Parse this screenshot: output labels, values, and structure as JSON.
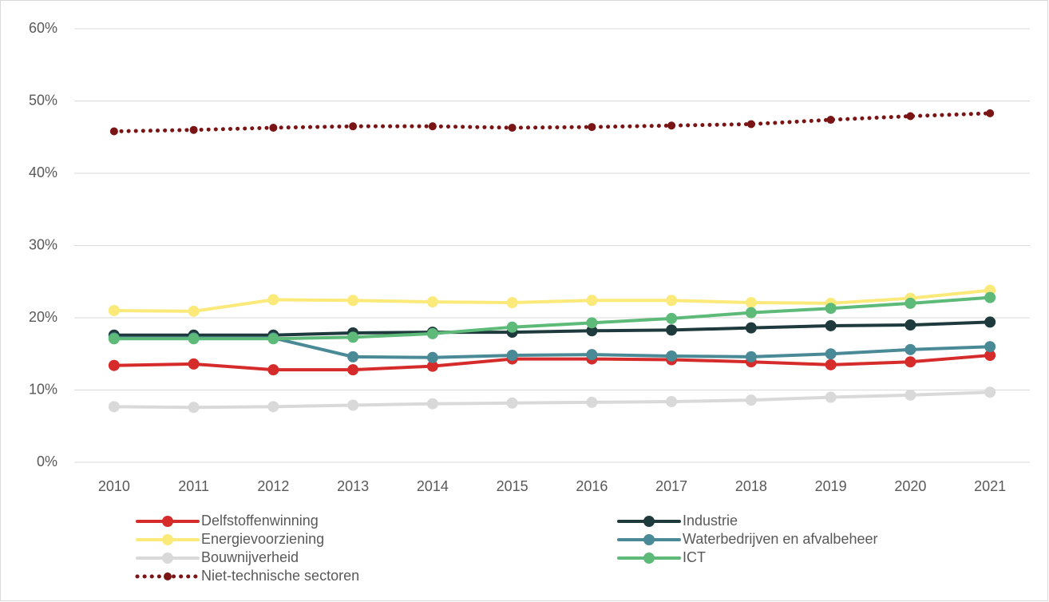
{
  "chart_data": {
    "type": "line",
    "categories": [
      "2010",
      "2011",
      "2012",
      "2013",
      "2014",
      "2015",
      "2016",
      "2017",
      "2018",
      "2019",
      "2020",
      "2021"
    ],
    "ylim": [
      0,
      60
    ],
    "yticks": [
      {
        "value": 0,
        "label": "0%"
      },
      {
        "value": 10,
        "label": "10%"
      },
      {
        "value": 20,
        "label": "20%"
      },
      {
        "value": 30,
        "label": "30%"
      },
      {
        "value": 40,
        "label": "40%"
      },
      {
        "value": 50,
        "label": "50%"
      },
      {
        "value": 60,
        "label": "60%"
      }
    ],
    "grid": true,
    "legend": "bottom",
    "series": [
      {
        "name": "Delfstoffenwinning",
        "color": "#d62b2b",
        "values": [
          13.4,
          13.6,
          12.8,
          12.8,
          13.3,
          14.3,
          14.3,
          14.2,
          13.9,
          13.5,
          13.9,
          14.8
        ]
      },
      {
        "name": "Industrie",
        "color": "#1f3a3d",
        "values": [
          17.6,
          17.6,
          17.6,
          17.9,
          18.0,
          18.0,
          18.2,
          18.3,
          18.6,
          18.9,
          19.0,
          19.4
        ]
      },
      {
        "name": "Energievoorziening",
        "color": "#fbe97a",
        "values": [
          21.0,
          20.9,
          22.5,
          22.4,
          22.2,
          22.1,
          22.4,
          22.4,
          22.1,
          22.0,
          22.7,
          23.8
        ]
      },
      {
        "name": "Waterbedrijven en afvalbeheer",
        "color": "#4a8a96",
        "values": [
          17.2,
          17.2,
          17.2,
          14.6,
          14.5,
          14.8,
          14.9,
          14.7,
          14.6,
          15.0,
          15.6,
          16.0
        ]
      },
      {
        "name": "Bouwnijverheid",
        "color": "#d9d9d9",
        "values": [
          7.7,
          7.6,
          7.7,
          7.9,
          8.1,
          8.2,
          8.3,
          8.4,
          8.6,
          9.0,
          9.3,
          9.7
        ]
      },
      {
        "name": "ICT",
        "color": "#5dba78",
        "values": [
          17.1,
          17.1,
          17.1,
          17.3,
          17.8,
          18.7,
          19.3,
          19.9,
          20.7,
          21.3,
          22.0,
          22.8
        ]
      },
      {
        "name": "Niet-technische sectoren",
        "color": "#7b1414",
        "dotted": true,
        "values": [
          45.8,
          46.0,
          46.3,
          46.5,
          46.5,
          46.3,
          46.4,
          46.6,
          46.8,
          47.4,
          47.9,
          48.3
        ]
      }
    ]
  }
}
